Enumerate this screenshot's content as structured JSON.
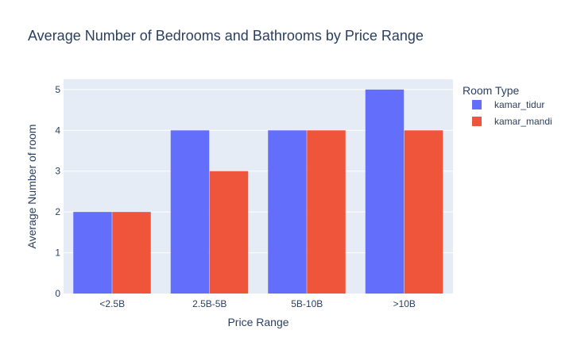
{
  "chart_data": {
    "type": "bar",
    "title": "Average Number of Bedrooms and Bathrooms by Price Range",
    "xlabel": "Price Range",
    "ylabel": "Average Number of room",
    "categories": [
      "<2.5B",
      "2.5B-5B",
      "5B-10B",
      ">10B"
    ],
    "series": [
      {
        "name": "kamar_tidur",
        "values": [
          2,
          4,
          4,
          5
        ],
        "color": "#636efa"
      },
      {
        "name": "kamar_mandi",
        "values": [
          2,
          3,
          4,
          4
        ],
        "color": "#ef553b"
      }
    ],
    "ylim": [
      0,
      5.25
    ],
    "yticks": [
      0,
      1,
      2,
      3,
      4,
      5
    ],
    "grid": true,
    "plot_background": "#e5ecf6",
    "legend": {
      "title": "Room Type",
      "placement": "right-top"
    }
  }
}
